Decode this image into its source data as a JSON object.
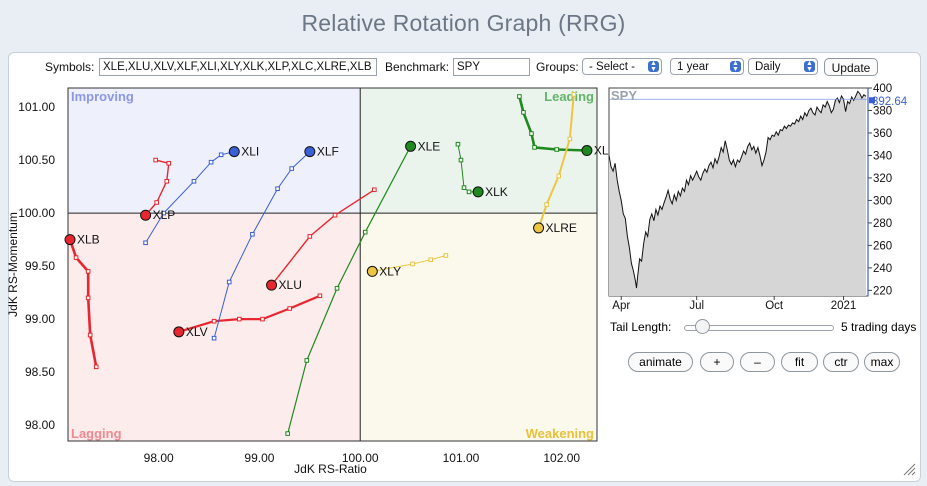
{
  "title": "Relative Rotation Graph (RRG)",
  "controls": {
    "symbols_label": "Symbols:",
    "symbols_value": "XLE,XLU,XLV,XLF,XLI,XLY,XLK,XLP,XLC,XLRE,XLB",
    "benchmark_label": "Benchmark:",
    "benchmark_value": "SPY",
    "groups_label": "Groups:",
    "groups_selected": "- Select -",
    "period_selected": "1 year",
    "frequency_selected": "Daily",
    "update_label": "Update"
  },
  "tail": {
    "label": "Tail Length:",
    "value_text": "5 trading days",
    "slider_fraction": 0.12
  },
  "buttons": {
    "animate": "animate",
    "plus": "+",
    "minus": "–",
    "fit": "fit",
    "ctr": "ctr",
    "max": "max"
  },
  "chart_data": [
    {
      "type": "scatter",
      "xlabel": "JdK RS-Ratio",
      "ylabel": "JdK RS-Momentum",
      "xlim": [
        97.1,
        102.35
      ],
      "ylim": [
        97.85,
        101.18
      ],
      "x_ticks": [
        98.0,
        99.0,
        100.0,
        101.0,
        102.0
      ],
      "x_tick_labels": [
        "98.00",
        "99.00",
        "100.00",
        "101.00",
        "102.00"
      ],
      "y_ticks": [
        98.0,
        98.5,
        99.0,
        99.5,
        100.0,
        100.5,
        101.0
      ],
      "y_tick_labels": [
        "98.00",
        "98.50",
        "99.00",
        "99.50",
        "100.00",
        "100.50",
        "101.00"
      ],
      "quadrants": [
        {
          "name": "Improving",
          "color": "#8c97e6",
          "fill": "#eef0fb"
        },
        {
          "name": "Leading",
          "color": "#62b46a",
          "fill": "#ebf4ec"
        },
        {
          "name": "Lagging",
          "color": "#f08a8f",
          "fill": "#fcecec"
        },
        {
          "name": "Weakening",
          "color": "#e9c13c",
          "fill": "#fbf8ec"
        }
      ],
      "series": [
        {
          "name": "XLE",
          "color": "#1e8a1e",
          "width": 1.2,
          "points": [
            [
              99.28,
              97.92
            ],
            [
              99.47,
              98.61
            ],
            [
              99.77,
              99.29
            ],
            [
              100.05,
              99.82
            ],
            [
              100.5,
              100.63
            ]
          ]
        },
        {
          "name": "XLU",
          "color": "#e8262f",
          "width": 1.4,
          "points": [
            [
              100.14,
              100.22
            ],
            [
              99.75,
              99.98
            ],
            [
              99.5,
              99.78
            ],
            [
              99.12,
              99.32
            ]
          ]
        },
        {
          "name": "XLV",
          "color": "#e8262f",
          "width": 2.2,
          "points": [
            [
              99.6,
              99.22
            ],
            [
              99.3,
              99.1
            ],
            [
              99.03,
              99.0
            ],
            [
              98.8,
              99.0
            ],
            [
              98.55,
              98.98
            ],
            [
              98.2,
              98.88
            ]
          ]
        },
        {
          "name": "XLF",
          "color": "#3a5fd6",
          "width": 1.0,
          "points": [
            [
              98.55,
              98.82
            ],
            [
              98.7,
              99.35
            ],
            [
              98.93,
              99.8
            ],
            [
              99.18,
              100.23
            ],
            [
              99.32,
              100.42
            ],
            [
              99.5,
              100.58
            ]
          ]
        },
        {
          "name": "XLI",
          "color": "#3a5fd6",
          "width": 1.0,
          "points": [
            [
              97.87,
              99.72
            ],
            [
              98.05,
              100.0
            ],
            [
              98.35,
              100.3
            ],
            [
              98.52,
              100.48
            ],
            [
              98.62,
              100.55
            ],
            [
              98.75,
              100.58
            ]
          ]
        },
        {
          "name": "XLY",
          "color": "#eec542",
          "width": 1.0,
          "points": [
            [
              100.85,
              99.6
            ],
            [
              100.7,
              99.56
            ],
            [
              100.52,
              99.52
            ],
            [
              100.12,
              99.45
            ]
          ]
        },
        {
          "name": "XLK",
          "color": "#1e8a1e",
          "width": 1.0,
          "points": [
            [
              100.97,
              100.65
            ],
            [
              101.0,
              100.5
            ],
            [
              101.03,
              100.24
            ],
            [
              101.08,
              100.2
            ],
            [
              101.17,
              100.2
            ]
          ]
        },
        {
          "name": "XLP",
          "color": "#e8262f",
          "width": 1.4,
          "points": [
            [
              97.97,
              100.5
            ],
            [
              98.1,
              100.47
            ],
            [
              98.08,
              100.3
            ],
            [
              97.98,
              100.1
            ],
            [
              97.87,
              99.98
            ]
          ]
        },
        {
          "name": "XLC",
          "color": "#1e8a1e",
          "width": 2.6,
          "points": [
            [
              101.58,
              101.1
            ],
            [
              101.62,
              100.95
            ],
            [
              101.7,
              100.75
            ],
            [
              101.73,
              100.62
            ],
            [
              101.95,
              100.6
            ],
            [
              102.25,
              100.59
            ]
          ]
        },
        {
          "name": "XLRE",
          "color": "#eec542",
          "width": 2.0,
          "points": [
            [
              102.12,
              101.12
            ],
            [
              102.08,
              100.7
            ],
            [
              101.97,
              100.35
            ],
            [
              101.85,
              100.08
            ],
            [
              101.77,
              99.86
            ]
          ]
        },
        {
          "name": "XLB",
          "color": "#e8262f",
          "width": 2.6,
          "points": [
            [
              97.38,
              98.55
            ],
            [
              97.32,
              98.85
            ],
            [
              97.3,
              99.2
            ],
            [
              97.3,
              99.45
            ],
            [
              97.18,
              99.58
            ],
            [
              97.12,
              99.75
            ]
          ]
        }
      ]
    },
    {
      "type": "area",
      "title": "SPY",
      "last_value": "392.64",
      "ylim": [
        215,
        400
      ],
      "y_ticks": [
        220,
        240,
        260,
        280,
        300,
        320,
        340,
        360,
        380,
        400
      ],
      "x_tick_labels": [
        "Apr",
        "Jul",
        "Oct",
        "2021"
      ],
      "x_tick_positions": [
        12,
        86,
        162,
        230
      ],
      "x_count": 254,
      "points": [
        [
          0,
          340
        ],
        [
          2,
          330
        ],
        [
          4,
          326
        ],
        [
          6,
          333
        ],
        [
          8,
          318
        ],
        [
          10,
          308
        ],
        [
          12,
          300
        ],
        [
          14,
          288
        ],
        [
          16,
          284
        ],
        [
          18,
          268
        ],
        [
          20,
          258
        ],
        [
          22,
          244
        ],
        [
          24,
          237
        ],
        [
          26,
          228
        ],
        [
          27,
          222
        ],
        [
          28,
          232
        ],
        [
          30,
          248
        ],
        [
          32,
          246
        ],
        [
          34,
          262
        ],
        [
          36,
          272
        ],
        [
          38,
          268
        ],
        [
          40,
          283
        ],
        [
          42,
          288
        ],
        [
          44,
          282
        ],
        [
          46,
          292
        ],
        [
          48,
          287
        ],
        [
          50,
          295
        ],
        [
          52,
          292
        ],
        [
          54,
          298
        ],
        [
          56,
          303
        ],
        [
          58,
          309
        ],
        [
          60,
          301
        ],
        [
          62,
          297
        ],
        [
          64,
          305
        ],
        [
          66,
          300
        ],
        [
          68,
          308
        ],
        [
          70,
          304
        ],
        [
          72,
          311
        ],
        [
          74,
          308
        ],
        [
          76,
          318
        ],
        [
          78,
          314
        ],
        [
          80,
          322
        ],
        [
          82,
          318
        ],
        [
          84,
          322
        ],
        [
          86,
          326
        ],
        [
          88,
          321
        ],
        [
          90,
          318
        ],
        [
          92,
          324
        ],
        [
          94,
          328
        ],
        [
          96,
          325
        ],
        [
          98,
          331
        ],
        [
          100,
          334
        ],
        [
          102,
          329
        ],
        [
          104,
          337
        ],
        [
          106,
          333
        ],
        [
          108,
          339
        ],
        [
          110,
          347
        ],
        [
          112,
          343
        ],
        [
          114,
          353
        ],
        [
          116,
          345
        ],
        [
          118,
          336
        ],
        [
          120,
          332
        ],
        [
          122,
          336
        ],
        [
          124,
          330
        ],
        [
          126,
          336
        ],
        [
          128,
          334
        ],
        [
          130,
          339
        ],
        [
          132,
          344
        ],
        [
          134,
          341
        ],
        [
          136,
          348
        ],
        [
          138,
          351
        ],
        [
          140,
          345
        ],
        [
          142,
          348
        ],
        [
          144,
          342
        ],
        [
          146,
          347
        ],
        [
          148,
          340
        ],
        [
          150,
          331
        ],
        [
          152,
          336
        ],
        [
          154,
          343
        ],
        [
          156,
          356
        ],
        [
          158,
          354
        ],
        [
          160,
          358
        ],
        [
          162,
          357
        ],
        [
          164,
          361
        ],
        [
          166,
          358
        ],
        [
          168,
          363
        ],
        [
          170,
          362
        ],
        [
          172,
          366
        ],
        [
          174,
          364
        ],
        [
          176,
          367
        ],
        [
          178,
          366
        ],
        [
          180,
          369
        ],
        [
          182,
          368
        ],
        [
          184,
          372
        ],
        [
          186,
          370
        ],
        [
          188,
          375
        ],
        [
          190,
          372
        ],
        [
          192,
          378
        ],
        [
          194,
          375
        ],
        [
          196,
          380
        ],
        [
          198,
          382
        ],
        [
          200,
          378
        ],
        [
          202,
          376
        ],
        [
          204,
          383
        ],
        [
          206,
          380
        ],
        [
          208,
          378
        ],
        [
          210,
          385
        ],
        [
          212,
          383
        ],
        [
          214,
          388
        ],
        [
          216,
          384
        ],
        [
          218,
          378
        ],
        [
          220,
          381
        ],
        [
          222,
          389
        ],
        [
          224,
          391
        ],
        [
          226,
          387
        ],
        [
          228,
          393
        ],
        [
          230,
          390
        ],
        [
          232,
          379
        ],
        [
          234,
          388
        ],
        [
          236,
          386
        ],
        [
          238,
          392
        ],
        [
          240,
          389
        ],
        [
          242,
          393
        ],
        [
          244,
          397
        ],
        [
          246,
          395
        ],
        [
          248,
          391
        ],
        [
          250,
          394
        ],
        [
          252,
          392.64
        ]
      ]
    }
  ]
}
